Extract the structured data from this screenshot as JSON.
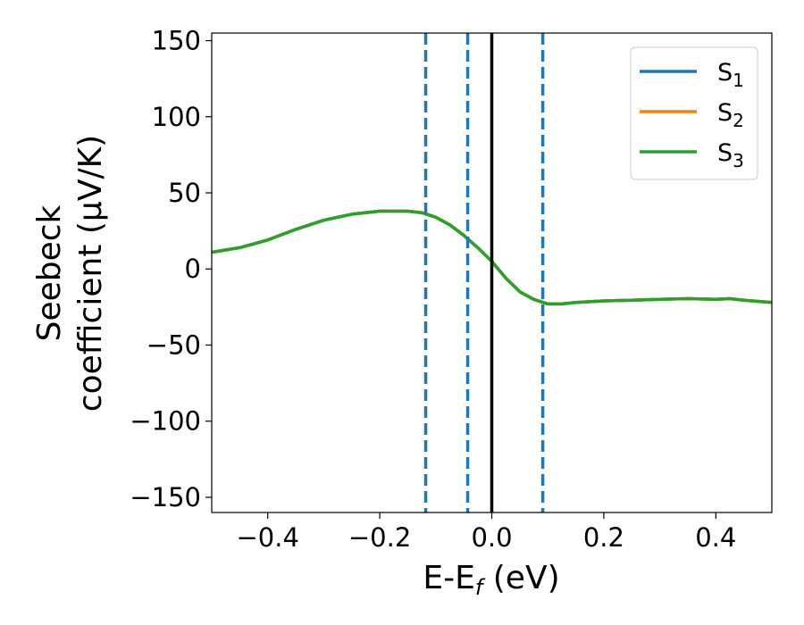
{
  "chart_data": {
    "type": "line",
    "xlabel": "E-E",
    "xlabel_sub": "f",
    "xlabel_unit": " (eV)",
    "ylabel_line1": "Seebeck",
    "ylabel_line2": "coefficient  (μV/K)",
    "xlim": [
      -0.5,
      0.5
    ],
    "ylim": [
      -160,
      155
    ],
    "xticks": [
      -0.4,
      -0.2,
      0.0,
      0.2,
      0.4
    ],
    "xtick_labels": [
      "−0.4",
      "−0.2",
      "0.0",
      "0.2",
      "0.4"
    ],
    "yticks": [
      150,
      100,
      50,
      0,
      -50,
      -100,
      -150
    ],
    "ytick_labels": [
      "150",
      "100",
      "50",
      "0",
      "−50",
      "−100",
      "−150"
    ],
    "grid": false,
    "legend_placement": "top-right",
    "series": [
      {
        "name": "S",
        "sub": "1",
        "color": "#1f77b4",
        "x": [
          -0.5,
          -0.45,
          -0.4,
          -0.35,
          -0.3,
          -0.25,
          -0.2,
          -0.175,
          -0.15,
          -0.125,
          -0.1,
          -0.075,
          -0.05,
          -0.025,
          0.0,
          0.025,
          0.05,
          0.075,
          0.1,
          0.125,
          0.15,
          0.2,
          0.25,
          0.3,
          0.35,
          0.4,
          0.425,
          0.45,
          0.5
        ],
        "y": [
          11,
          14,
          19,
          26,
          32,
          36,
          38,
          38,
          38,
          37,
          34,
          29,
          22,
          14,
          5,
          -6,
          -15,
          -20,
          -23,
          -23,
          -22,
          -21,
          -20.5,
          -20,
          -19.5,
          -20,
          -19.5,
          -20.5,
          -22
        ]
      },
      {
        "name": "S",
        "sub": "2",
        "color": "#ff7f0e",
        "x": [
          -0.5,
          -0.45,
          -0.4,
          -0.35,
          -0.3,
          -0.25,
          -0.2,
          -0.175,
          -0.15,
          -0.125,
          -0.1,
          -0.075,
          -0.05,
          -0.025,
          0.0,
          0.025,
          0.05,
          0.075,
          0.1,
          0.125,
          0.15,
          0.2,
          0.25,
          0.3,
          0.35,
          0.4,
          0.425,
          0.45,
          0.5
        ],
        "y": [
          11,
          14,
          19,
          26,
          32,
          36,
          38,
          38,
          38,
          37,
          34,
          29,
          22,
          14,
          5,
          -6,
          -15,
          -20,
          -23,
          -23,
          -22,
          -21,
          -20.5,
          -20,
          -19.5,
          -20,
          -19.5,
          -20.5,
          -22
        ]
      },
      {
        "name": "S",
        "sub": "3",
        "color": "#2ca02c",
        "x": [
          -0.5,
          -0.45,
          -0.4,
          -0.35,
          -0.3,
          -0.25,
          -0.2,
          -0.175,
          -0.15,
          -0.125,
          -0.1,
          -0.075,
          -0.05,
          -0.025,
          0.0,
          0.025,
          0.05,
          0.075,
          0.1,
          0.125,
          0.15,
          0.2,
          0.25,
          0.3,
          0.35,
          0.4,
          0.425,
          0.45,
          0.5
        ],
        "y": [
          11,
          14,
          19,
          26,
          32,
          36,
          38,
          38,
          38,
          37,
          34,
          29,
          22,
          14,
          5,
          -6,
          -15,
          -20,
          -23,
          -23,
          -22,
          -21,
          -20.5,
          -20,
          -19.5,
          -20,
          -19.5,
          -20.5,
          -22
        ]
      }
    ],
    "vlines": [
      {
        "x": 0.0,
        "style": "solid",
        "color": "#000000"
      },
      {
        "x": -0.118,
        "style": "dashed",
        "color": "#1f77b4"
      },
      {
        "x": -0.043,
        "style": "dashed",
        "color": "#1f77b4"
      },
      {
        "x": 0.091,
        "style": "dashed",
        "color": "#1f77b4"
      }
    ]
  }
}
